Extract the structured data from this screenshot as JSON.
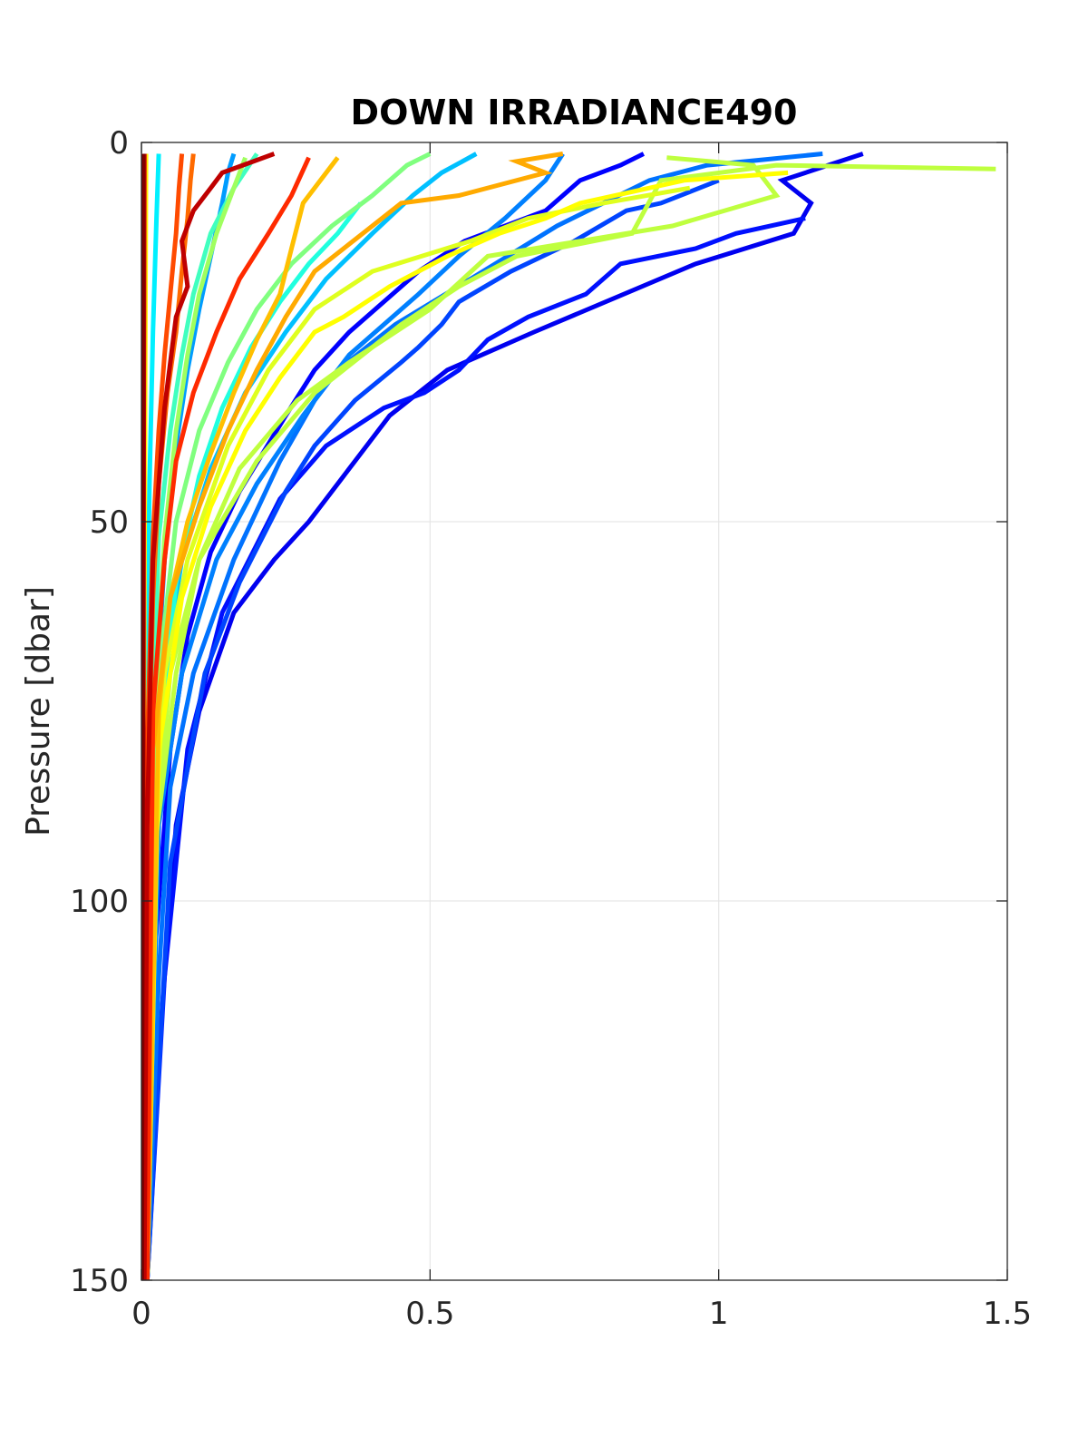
{
  "chart_data": {
    "type": "line",
    "title": "DOWN IRRADIANCE490",
    "xlabel": "",
    "ylabel": "Pressure [dbar]",
    "xlim": [
      0,
      1.5
    ],
    "ylim": [
      0,
      150
    ],
    "y_reversed": true,
    "grid": true,
    "legend": "none",
    "x_ticks": [
      "0",
      "0.5",
      "1",
      "1.5"
    ],
    "x_tick_values": [
      0,
      0.5,
      1,
      1.5
    ],
    "y_ticks": [
      "0",
      "50",
      "100",
      "150"
    ],
    "y_tick_values": [
      0,
      50,
      100,
      150
    ],
    "colors": {
      "axis": "#262626",
      "grid": "#e6e6e6",
      "colormap": "jet"
    },
    "series": [
      {
        "color": "#0000f0",
        "x": [
          1.25,
          1.11,
          1.16,
          1.13,
          0.96,
          0.68,
          0.53,
          0.43,
          0.37,
          0.29,
          0.23,
          0.16,
          0.1,
          0.06,
          0.03,
          0.01
        ],
        "y": [
          1.5,
          5,
          8,
          12,
          16,
          25,
          30,
          36,
          42,
          50,
          55,
          62,
          75,
          90,
          120,
          150
        ]
      },
      {
        "color": "#0000ff",
        "x": [
          0.87,
          0.83,
          0.76,
          0.73,
          0.7,
          0.56,
          0.48,
          0.36,
          0.3,
          0.25,
          0.17,
          0.12,
          0.08,
          0.05,
          0.02,
          0.01
        ],
        "y": [
          1.5,
          3,
          5,
          7,
          9,
          13,
          17,
          25,
          30,
          36,
          46,
          54,
          65,
          80,
          110,
          150
        ]
      },
      {
        "color": "#0010ff",
        "x": [
          1.15,
          1.03,
          0.96,
          0.83,
          0.77,
          0.67,
          0.6,
          0.55,
          0.49,
          0.42,
          0.32,
          0.24,
          0.14,
          0.08,
          0.04,
          0.01
        ],
        "y": [
          10,
          12,
          14,
          16,
          20,
          23,
          26,
          30,
          33,
          35,
          40,
          47,
          62,
          80,
          110,
          150
        ]
      },
      {
        "color": "#0044ff",
        "x": [
          1.0,
          0.9,
          0.84,
          0.75,
          0.64,
          0.55,
          0.52,
          0.48,
          0.45,
          0.37,
          0.3,
          0.25,
          0.17,
          0.11,
          0.05,
          0.01
        ],
        "y": [
          5,
          8,
          9,
          13,
          17,
          21,
          24,
          27,
          29,
          34,
          40,
          46,
          58,
          70,
          95,
          150
        ]
      },
      {
        "color": "#0072ff",
        "x": [
          1.18,
          0.98,
          0.88,
          0.8,
          0.72,
          0.57,
          0.44,
          0.34,
          0.3,
          0.24,
          0.16,
          0.09,
          0.05,
          0.03,
          0.01
        ],
        "y": [
          1.5,
          3,
          5,
          8,
          11,
          18,
          24,
          30,
          34,
          42,
          55,
          70,
          85,
          110,
          150
        ]
      },
      {
        "color": "#0080ff",
        "x": [
          0.73,
          0.7,
          0.63,
          0.55,
          0.48,
          0.36,
          0.28,
          0.2,
          0.13,
          0.07,
          0.03,
          0.01
        ],
        "y": [
          1.5,
          5,
          10,
          15,
          20,
          28,
          36,
          45,
          55,
          70,
          90,
          150
        ]
      },
      {
        "color": "#009cff",
        "x": [
          0.16,
          0.15,
          0.14,
          0.12,
          0.1,
          0.08,
          0.06,
          0.04,
          0.02,
          0.01
        ],
        "y": [
          1.5,
          4,
          8,
          15,
          22,
          30,
          40,
          55,
          80,
          150
        ]
      },
      {
        "color": "#00c0ff",
        "x": [
          0.58,
          0.52,
          0.47,
          0.4,
          0.32,
          0.25,
          0.18,
          0.12,
          0.07,
          0.03,
          0.01
        ],
        "y": [
          1.5,
          4,
          7,
          12,
          18,
          25,
          33,
          43,
          55,
          75,
          150
        ]
      },
      {
        "color": "#00f0ff",
        "x": [
          0.03,
          0.026,
          0.02,
          0.014,
          0.009,
          0.005,
          0.002
        ],
        "y": [
          1.5,
          10,
          25,
          45,
          70,
          100,
          150
        ]
      },
      {
        "color": "#20ffdf",
        "x": [
          0.38,
          0.34,
          0.29,
          0.24,
          0.19,
          0.14,
          0.1,
          0.06,
          0.03,
          0.01
        ],
        "y": [
          8,
          12,
          16,
          21,
          27,
          35,
          44,
          58,
          80,
          150
        ]
      },
      {
        "color": "#40ffbf",
        "x": [
          0.2,
          0.16,
          0.12,
          0.09,
          0.07,
          0.05,
          0.03,
          0.02,
          0.01
        ],
        "y": [
          1.5,
          6,
          12,
          20,
          28,
          38,
          52,
          75,
          150
        ]
      },
      {
        "color": "#80ff7f",
        "x": [
          0.5,
          0.46,
          0.4,
          0.33,
          0.26,
          0.2,
          0.15,
          0.1,
          0.06,
          0.03,
          0.01
        ],
        "y": [
          1.5,
          3,
          7,
          11,
          16,
          22,
          29,
          38,
          50,
          70,
          150
        ]
      },
      {
        "color": "#a0ff5f",
        "x": [
          0.18,
          0.16,
          0.13,
          0.1,
          0.08,
          0.06,
          0.04,
          0.02,
          0.01
        ],
        "y": [
          2,
          6,
          12,
          20,
          28,
          38,
          52,
          80,
          150
        ]
      },
      {
        "color": "#bfff3f",
        "x": [
          1.48,
          1.1,
          0.9,
          0.85,
          0.65,
          0.55,
          0.45,
          0.3,
          0.2,
          0.1,
          0.05,
          0.02,
          0.01
        ],
        "y": [
          3.5,
          3,
          5,
          12,
          15,
          19,
          24,
          33,
          42,
          55,
          70,
          95,
          150
        ]
      },
      {
        "color": "#bfff3f",
        "x": [
          0.91,
          1.06,
          1.1,
          0.92,
          0.6,
          0.5,
          0.36,
          0.27,
          0.17,
          0.1,
          0.06,
          0.02,
          0.01
        ],
        "y": [
          2,
          3,
          7,
          11,
          15,
          22,
          29,
          34,
          43,
          55,
          70,
          95,
          150
        ]
      },
      {
        "color": "#dfff1f",
        "x": [
          0.95,
          0.8,
          0.67,
          0.57,
          0.4,
          0.3,
          0.22,
          0.15,
          0.08,
          0.04,
          0.02,
          0.01
        ],
        "y": [
          6,
          8,
          10,
          13,
          17,
          22,
          30,
          40,
          55,
          70,
          95,
          150
        ]
      },
      {
        "color": "#ffff00",
        "x": [
          1.12,
          0.94,
          0.76,
          0.7,
          0.62,
          0.53,
          0.43,
          0.35,
          0.3,
          0.24,
          0.18,
          0.12,
          0.07,
          0.03,
          0.01
        ],
        "y": [
          4,
          5,
          8,
          10,
          12,
          15,
          19,
          23,
          25,
          31,
          38,
          48,
          60,
          80,
          150
        ]
      },
      {
        "color": "#ffef00",
        "x": [
          0.008,
          0.007,
          0.005,
          0.003,
          0.002
        ],
        "y": [
          1.5,
          20,
          60,
          100,
          150
        ]
      },
      {
        "color": "#ffbf00",
        "x": [
          0.34,
          0.28,
          0.26,
          0.24,
          0.2,
          0.16,
          0.12,
          0.08,
          0.05,
          0.03,
          0.01
        ],
        "y": [
          2,
          8,
          14,
          20,
          26,
          33,
          41,
          50,
          60,
          75,
          150
        ]
      },
      {
        "color": "#ffaa00",
        "x": [
          0.73,
          0.65,
          0.7,
          0.55,
          0.45,
          0.4,
          0.3,
          0.25,
          0.2,
          0.15,
          0.1,
          0.05,
          0.02,
          0.01
        ],
        "y": [
          1.5,
          2.5,
          4,
          7,
          8,
          11,
          17,
          23,
          30,
          38,
          48,
          60,
          80,
          150
        ]
      },
      {
        "color": "#ff6a00",
        "x": [
          0.09,
          0.085,
          0.08,
          0.07,
          0.06,
          0.045,
          0.03,
          0.02,
          0.01,
          0.005
        ],
        "y": [
          1.5,
          5,
          10,
          17,
          25,
          33,
          45,
          60,
          90,
          150
        ]
      },
      {
        "color": "#ff4a00",
        "x": [
          0.07,
          0.065,
          0.06,
          0.05,
          0.04,
          0.03,
          0.02,
          0.01,
          0.005
        ],
        "y": [
          1.5,
          6,
          12,
          20,
          28,
          38,
          52,
          80,
          150
        ]
      },
      {
        "color": "#ff2a00",
        "x": [
          0.29,
          0.26,
          0.22,
          0.17,
          0.13,
          0.09,
          0.06,
          0.04,
          0.02,
          0.01
        ],
        "y": [
          2,
          7,
          12,
          18,
          25,
          33,
          42,
          55,
          75,
          150
        ]
      },
      {
        "color": "#bf0000",
        "x": [
          0.23,
          0.14,
          0.12,
          0.09,
          0.07,
          0.08,
          0.06,
          0.04,
          0.02,
          0.01,
          0.005
        ],
        "y": [
          1.5,
          4,
          6,
          9,
          13,
          19,
          23,
          35,
          55,
          90,
          150
        ]
      },
      {
        "color": "#cc0000",
        "x": [
          0.005,
          0.004,
          0.003,
          0.002
        ],
        "y": [
          1.5,
          40,
          100,
          150
        ]
      },
      {
        "color": "#800000",
        "x": [
          0.003,
          0.002,
          0.001
        ],
        "y": [
          1.5,
          75,
          150
        ]
      }
    ]
  }
}
